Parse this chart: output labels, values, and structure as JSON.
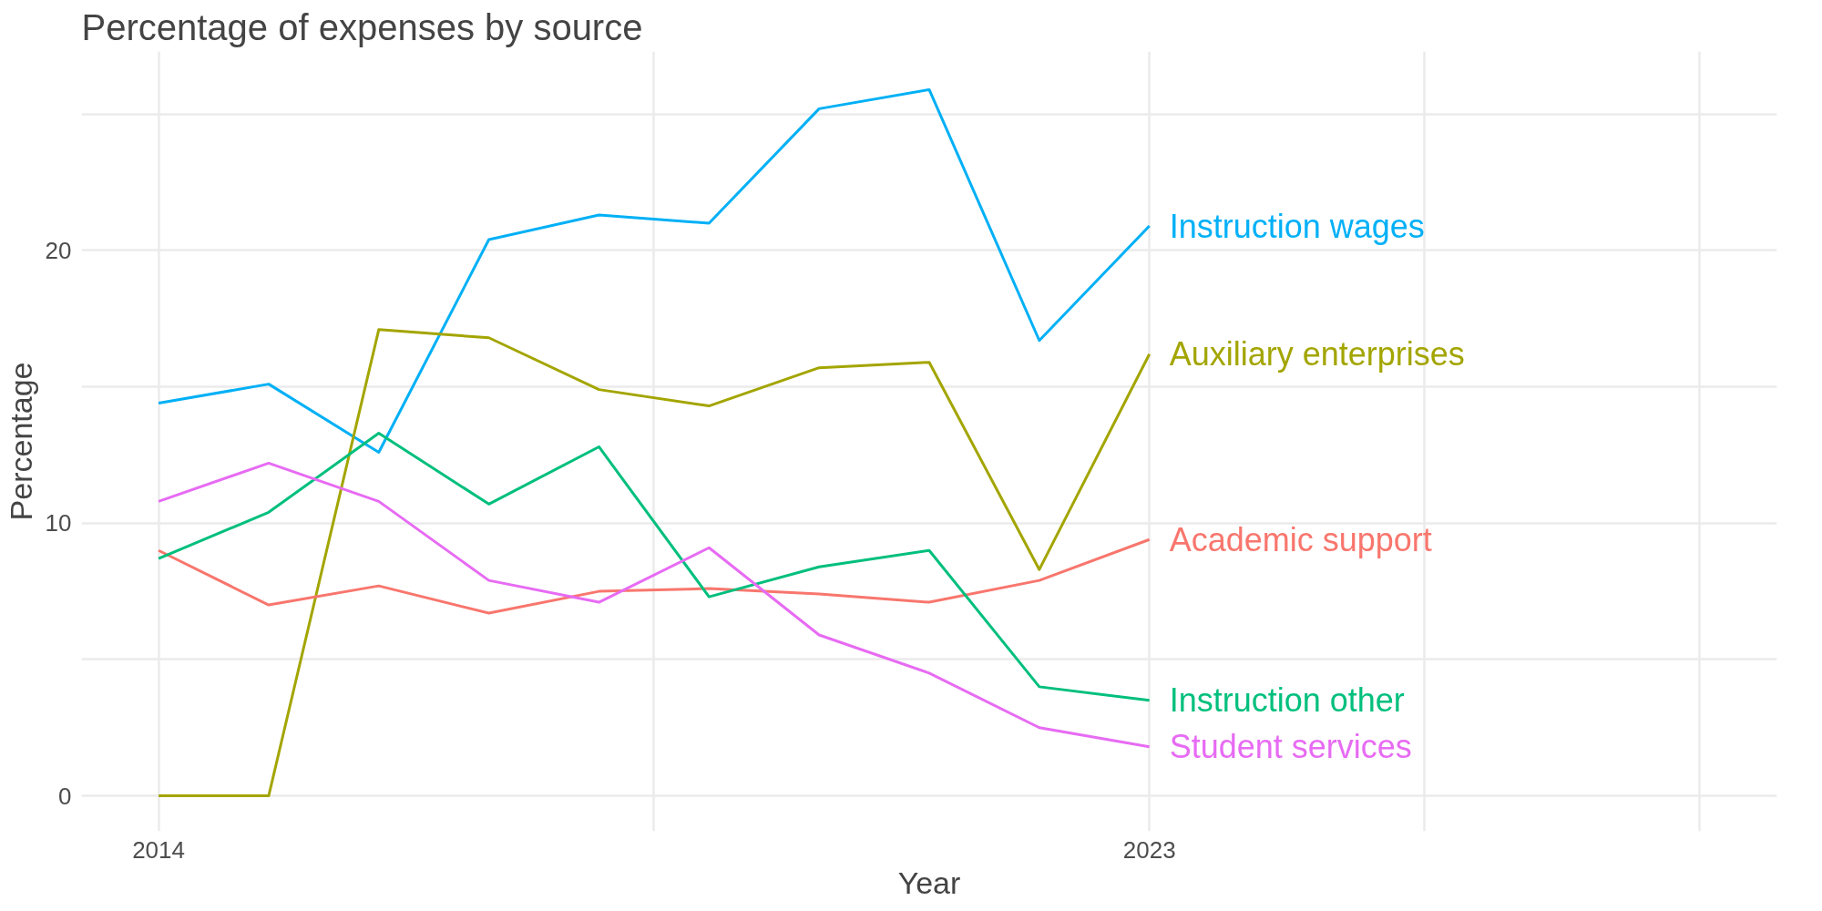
{
  "chart_data": {
    "type": "line",
    "title": "Percentage of expenses by source",
    "xlabel": "Year",
    "ylabel": "Percentage",
    "x": [
      2014,
      2015,
      2016,
      2017,
      2018,
      2019,
      2020,
      2021,
      2022,
      2023
    ],
    "series": [
      {
        "name": "Instruction wages",
        "color": "#00b0f6",
        "values": [
          14.4,
          15.1,
          12.6,
          20.4,
          21.3,
          21.0,
          25.2,
          25.9,
          16.7,
          20.9
        ]
      },
      {
        "name": "Auxiliary enterprises",
        "color": "#a3a500",
        "values": [
          0,
          0,
          17.1,
          16.8,
          14.9,
          14.3,
          15.7,
          15.9,
          8.3,
          16.2
        ]
      },
      {
        "name": "Academic support",
        "color": "#f8766d",
        "values": [
          9.0,
          7.0,
          7.7,
          6.7,
          7.5,
          7.6,
          7.4,
          7.1,
          7.9,
          9.4
        ]
      },
      {
        "name": "Instruction other",
        "color": "#00bf7d",
        "values": [
          8.7,
          10.4,
          13.3,
          10.7,
          12.8,
          7.3,
          8.4,
          9.0,
          4.0,
          3.5
        ]
      },
      {
        "name": "Student services",
        "color": "#e76bf3",
        "values": [
          10.8,
          12.2,
          10.8,
          7.9,
          7.1,
          9.1,
          5.9,
          4.5,
          2.5,
          1.8
        ]
      }
    ],
    "xlim": [
      2013.3,
      2028.7
    ],
    "ylim": [
      -1.3,
      27.3
    ],
    "xticks": [
      2014,
      {
        "value": 2018.5,
        "label": null
      },
      2023,
      {
        "value": 2025.5,
        "label": null
      },
      {
        "value": 2028,
        "label": null
      }
    ],
    "yticks": [
      0,
      {
        "value": 5,
        "label": null
      },
      10,
      {
        "value": 15,
        "label": null
      },
      20,
      {
        "value": 25,
        "label": null
      }
    ],
    "grid": true,
    "legend": false,
    "line_style": "solid",
    "marker": "none"
  }
}
